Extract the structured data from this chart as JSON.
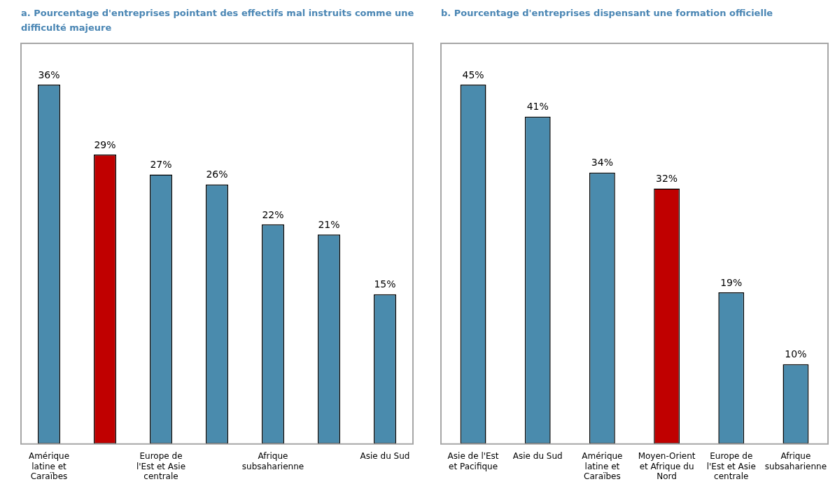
{
  "chart_data": [
    {
      "type": "bar",
      "title": "a. Pourcentage d'entreprises pointant des effectifs mal instruits comme une difficulté majeure",
      "categories": [
        "Amérique latine et Caraïbes",
        null,
        "Europe de l'Est et Asie centrale",
        null,
        "Afrique subsaharienne",
        null,
        "Asie du Sud"
      ],
      "values": [
        36,
        29,
        27,
        26,
        22,
        21,
        15
      ],
      "value_labels": [
        "36%",
        "29%",
        "27%",
        "26%",
        "22%",
        "21%",
        "15%"
      ],
      "colors": [
        "#4a8bad",
        "#c00000",
        "#4a8bad",
        "#4a8bad",
        "#4a8bad",
        "#4a8bad",
        "#4a8bad"
      ]
    },
    {
      "type": "bar",
      "title": "b. Pourcentage d'entreprises dispensant une formation officielle",
      "categories": [
        "Asie de l'Est et Pacifique",
        "Asie du Sud",
        "Amérique latine et Caraïbes",
        "Moyen-Orient et Afrique du Nord",
        "Europe de l'Est et Asie centrale",
        "Afrique subsaharienne"
      ],
      "values": [
        45,
        41,
        34,
        32,
        19,
        10
      ],
      "value_labels": [
        "45%",
        "41%",
        "34%",
        "32%",
        "19%",
        "10%"
      ],
      "colors": [
        "#4a8bad",
        "#4a8bad",
        "#4a8bad",
        "#c00000",
        "#4a8bad",
        "#4a8bad"
      ]
    }
  ]
}
